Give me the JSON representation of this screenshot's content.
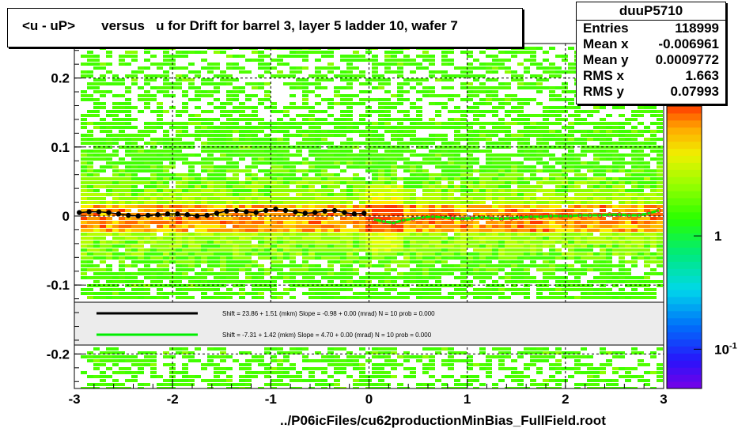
{
  "title": "<u - uP>       versus   u for Drift for barrel 3, layer 5 ladder 10, wafer 7",
  "footer": "../P06icFiles/cu62productionMinBias_FullField.root",
  "stats": {
    "name": "duuP5710",
    "rows": [
      {
        "label": "Entries",
        "value": "118999"
      },
      {
        "label": "Mean x",
        "value": "-0.006961"
      },
      {
        "label": "Mean y",
        "value": "0.0009772"
      },
      {
        "label": "RMS x",
        "value": "1.663"
      },
      {
        "label": "RMS y",
        "value": "0.07993"
      }
    ]
  },
  "palette_labels": [
    {
      "label": "1",
      "value": 1
    },
    {
      "label": "10",
      "sup": "-1",
      "value": 0.1
    }
  ],
  "chart_data": {
    "type": "heatmap",
    "xlim": [
      -3,
      3
    ],
    "ylim": [
      -0.25,
      0.25
    ],
    "x_ticks": [
      {
        "v": -3,
        "label": "-3"
      },
      {
        "v": -2,
        "label": "-2"
      },
      {
        "v": -1,
        "label": "-1"
      },
      {
        "v": 0,
        "label": "0"
      },
      {
        "v": 1,
        "label": "1"
      },
      {
        "v": 2,
        "label": "2"
      },
      {
        "v": 3,
        "label": "3"
      }
    ],
    "y_ticks": [
      {
        "v": 0.2,
        "label": "0.2"
      },
      {
        "v": 0.1,
        "label": "0.1"
      },
      {
        "v": 0,
        "label": "0"
      },
      {
        "v": -0.1,
        "label": "-0.1"
      },
      {
        "v": -0.2,
        "label": "-0.2"
      }
    ],
    "grid": true,
    "z_log": true,
    "band_y": 0.0,
    "profile_black": {
      "x": [
        -2.95,
        -2.85,
        -2.75,
        -2.65,
        -2.55,
        -2.45,
        -2.35,
        -2.25,
        -2.15,
        -2.05,
        -1.95,
        -1.85,
        -1.75,
        -1.65,
        -1.55,
        -1.45,
        -1.35,
        -1.25,
        -1.15,
        -1.05,
        -0.95,
        -0.85,
        -0.75,
        -0.65,
        -0.55,
        -0.45,
        -0.35,
        -0.25,
        -0.15,
        -0.05
      ],
      "y": [
        0.005,
        0.006,
        0.006,
        0.005,
        0.003,
        0.001,
        0.0,
        0.001,
        0.002,
        0.003,
        0.003,
        0.002,
        0.0,
        0.001,
        0.004,
        0.007,
        0.008,
        0.006,
        0.005,
        0.008,
        0.01,
        0.008,
        0.006,
        0.004,
        0.005,
        0.007,
        0.008,
        0.005,
        0.003,
        0.004
      ]
    },
    "profile_green": {
      "x": [
        0.05,
        0.15,
        0.25,
        0.35,
        0.45,
        0.55,
        0.65,
        0.75,
        0.85,
        0.95,
        1.05,
        1.15,
        1.25,
        1.35,
        1.45,
        1.55,
        1.65,
        1.75,
        1.85,
        1.95,
        2.05,
        2.15,
        2.25,
        2.35,
        2.45,
        2.55,
        2.65,
        2.75,
        2.85,
        2.95
      ],
      "y": [
        -0.005,
        -0.008,
        -0.01,
        -0.006,
        -0.004,
        -0.002,
        -0.001,
        -0.002,
        -0.003,
        -0.004,
        -0.003,
        -0.002,
        -0.003,
        -0.004,
        -0.003,
        -0.002,
        -0.001,
        -0.001,
        0.0,
        0.0,
        0.0,
        0.001,
        0.001,
        0.001,
        0.002,
        0.002,
        0.001,
        0.001,
        0.004,
        0.008
      ]
    },
    "legend": [
      {
        "color": "#000000",
        "text": "Shift =    23.86 + 1.51 (mkm) Slope =    -0.98 + 0.00 (mrad)  N = 10 prob = 0.000"
      },
      {
        "color": "#00ee00",
        "text": "Shift =    -7.31 + 1.42 (mkm) Slope =     4.70 + 0.00 (mrad)  N = 10 prob = 0.000"
      }
    ]
  },
  "colors": {
    "marker_black": "#000000",
    "marker_red": "#e0242a",
    "line_green": "#00ee00",
    "legend_bg": "#ececec"
  }
}
